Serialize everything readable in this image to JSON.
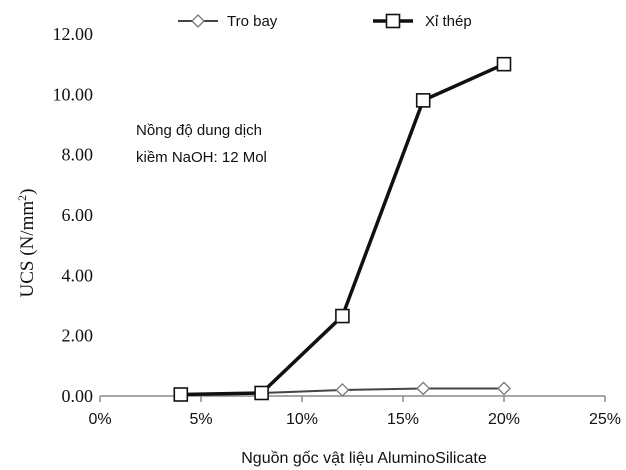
{
  "chart_data": {
    "type": "line",
    "title": "",
    "xlabel": "Nguồn gốc vật liệu AluminoSilicate",
    "ylabel": "UCS (N/mm²)",
    "ylabel_main": "UCS (N/mm",
    "ylabel_sup": "2",
    "ylabel_close": ")",
    "xlim": [
      0,
      25
    ],
    "ylim": [
      0,
      12
    ],
    "xticks": [
      "0%",
      "5%",
      "10%",
      "15%",
      "20%",
      "25%"
    ],
    "yticks": [
      "0.00",
      "2.00",
      "4.00",
      "6.00",
      "8.00",
      "10.00",
      "12.00"
    ],
    "grid": false,
    "legend_position": "top",
    "series": [
      {
        "name": "Tro bay",
        "marker": "diamond",
        "color": "#444444",
        "linewidth": 2,
        "x": [
          4,
          8,
          12,
          16,
          20
        ],
        "y": [
          0.05,
          0.1,
          0.2,
          0.25,
          0.25
        ]
      },
      {
        "name": "Xỉ thép",
        "marker": "square",
        "color": "#111111",
        "linewidth": 3.5,
        "x": [
          4,
          8,
          12,
          16,
          20
        ],
        "y": [
          0.05,
          0.1,
          2.65,
          9.8,
          11.0
        ]
      }
    ],
    "annotation": [
      "Nồng độ dung dịch",
      "kiềm NaOH: 12 Mol"
    ]
  }
}
